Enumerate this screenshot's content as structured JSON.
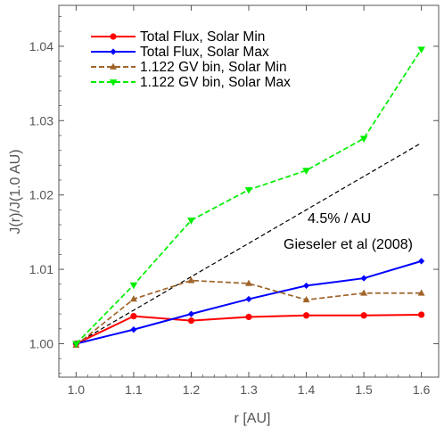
{
  "chart_data": {
    "type": "line",
    "xlabel": "r [AU]",
    "ylabel": "J(r)/J(1.0 AU)",
    "xlim": [
      0.97,
      1.63
    ],
    "ylim": [
      0.9955,
      1.0455
    ],
    "xticks": [
      1.0,
      1.1,
      1.2,
      1.3,
      1.4,
      1.5,
      1.6
    ],
    "xtick_labels": [
      "1.0",
      "1.1",
      "1.2",
      "1.3",
      "1.4",
      "1.5",
      "1.6"
    ],
    "yticks": [
      1.0,
      1.01,
      1.02,
      1.03,
      1.04
    ],
    "ytick_labels": [
      "1.00",
      "1.01",
      "1.02",
      "1.03",
      "1.04"
    ],
    "grid": false,
    "legend_position": "top-left",
    "x": [
      1.0,
      1.1,
      1.2,
      1.3,
      1.4,
      1.5,
      1.6
    ],
    "series": [
      {
        "name": "Total Flux, Solar Min",
        "color": "#ff0000",
        "dash": "solid",
        "marker": "circle",
        "values": [
          1.0,
          1.0037,
          1.0031,
          1.0036,
          1.0038,
          1.0038,
          1.0039
        ]
      },
      {
        "name": "Total Flux, Solar Max",
        "color": "#0000ff",
        "dash": "solid",
        "marker": "diamond",
        "values": [
          1.0,
          1.0019,
          1.004,
          1.006,
          1.0078,
          1.0088,
          1.0111
        ]
      },
      {
        "name": "1.122 GV bin, Solar Min",
        "color": "#a0642a",
        "dash": "dashed",
        "marker": "triangle-up",
        "values": [
          0.9998,
          1.006,
          1.0085,
          1.0081,
          1.0059,
          1.0068,
          1.0068
        ]
      },
      {
        "name": "1.122 GV bin, Solar Max",
        "color": "#00ee00",
        "dash": "dashed",
        "marker": "triangle-down",
        "values": [
          1.0,
          1.0079,
          1.0166,
          1.0207,
          1.0233,
          1.0276,
          1.0396
        ]
      }
    ],
    "reference_line": {
      "color": "#000000",
      "dash": "dashed",
      "x": [
        1.0,
        1.6
      ],
      "values": [
        1.0,
        1.027
      ]
    },
    "annotations": [
      "4.5% / AU",
      "Gieseler et al (2008)"
    ]
  }
}
